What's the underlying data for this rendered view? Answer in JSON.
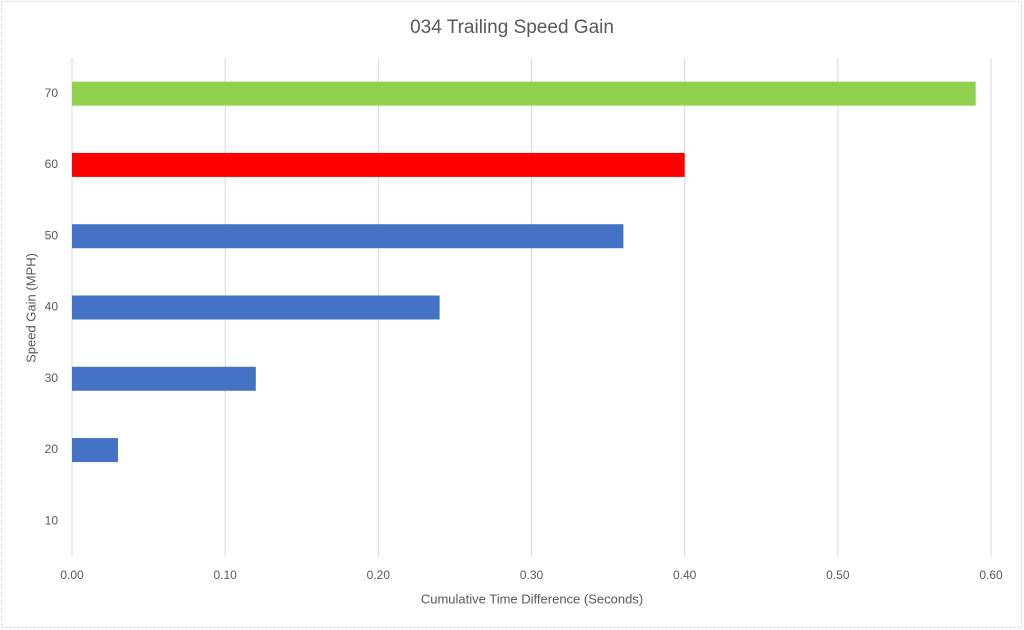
{
  "chart_data": {
    "type": "bar",
    "orientation": "horizontal",
    "title": "034 Trailing Speed Gain",
    "x_label": "Cumulative Time Difference (Seconds)",
    "y_label": "Speed Gain (MPH)",
    "categories": [
      "10",
      "20",
      "30",
      "40",
      "50",
      "60",
      "70"
    ],
    "values": [
      0,
      0.03,
      0.12,
      0.24,
      0.36,
      0.4,
      0.59
    ],
    "colors": [
      "#4472c4",
      "#4472c4",
      "#4472c4",
      "#4472c4",
      "#4472c4",
      "#ff0000",
      "#92d050"
    ],
    "xlim": [
      0,
      0.6
    ],
    "xticks": [
      {
        "value": 0,
        "label": "0.00"
      },
      {
        "value": 0.1,
        "label": "0.10"
      },
      {
        "value": 0.2,
        "label": "0.20"
      },
      {
        "value": 0.3,
        "label": "0.30"
      },
      {
        "value": 0.4,
        "label": "0.40"
      },
      {
        "value": 0.5,
        "label": "0.50"
      },
      {
        "value": 0.6,
        "label": "0.60"
      }
    ],
    "grid": true
  }
}
